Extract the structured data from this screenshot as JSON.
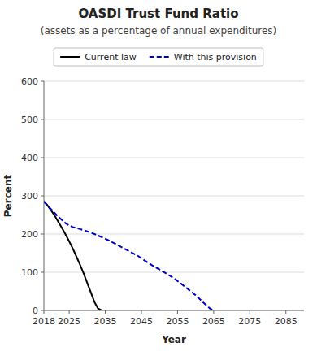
{
  "chart_data": {
    "type": "line",
    "title": "OASDI Trust Fund Ratio",
    "subtitle": "(assets as a percentage of annual expenditures)",
    "xlabel": "Year",
    "ylabel": "Percent",
    "xlim": [
      2018,
      2090
    ],
    "ylim": [
      0,
      600
    ],
    "xticks": [
      2018,
      2025,
      2035,
      2045,
      2055,
      2065,
      2075,
      2085
    ],
    "yticks": [
      0,
      100,
      200,
      300,
      400,
      500,
      600
    ],
    "grid": true,
    "legend": "top",
    "series": [
      {
        "name": "Current law",
        "color": "#000000",
        "line_style": "solid",
        "x": [
          2018,
          2019,
          2020,
          2021,
          2022,
          2023,
          2024,
          2025,
          2026,
          2027,
          2028,
          2029,
          2030,
          2031,
          2032,
          2033,
          2034
        ],
        "values": [
          285,
          275,
          262,
          248,
          232,
          216,
          199,
          181,
          162,
          141,
          120,
          97,
          72,
          47,
          22,
          5,
          0
        ]
      },
      {
        "name": "With this provision",
        "color": "#0000cc",
        "line_style": "dashed",
        "x": [
          2018,
          2020,
          2022,
          2024,
          2026,
          2028,
          2030,
          2032,
          2034,
          2036,
          2038,
          2040,
          2042,
          2044,
          2046,
          2048,
          2050,
          2052,
          2054,
          2056,
          2058,
          2060,
          2062,
          2064,
          2065
        ],
        "values": [
          285,
          265,
          245,
          228,
          218,
          213,
          207,
          200,
          192,
          183,
          173,
          163,
          153,
          143,
          130,
          118,
          107,
          96,
          84,
          70,
          55,
          40,
          22,
          5,
          0
        ]
      }
    ]
  }
}
